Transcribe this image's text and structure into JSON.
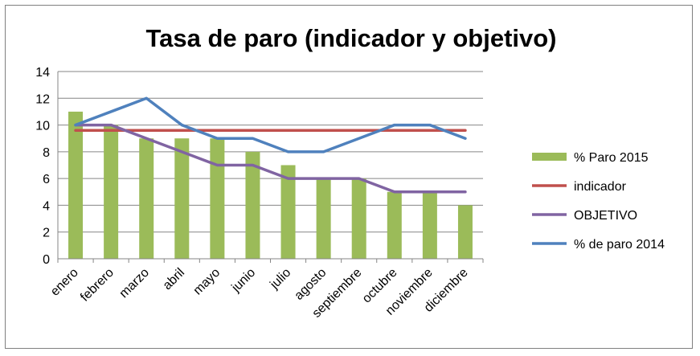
{
  "chart_data": {
    "type": "bar",
    "title": "Tasa de paro (indicador y objetivo)",
    "xlabel": "",
    "ylabel": "",
    "ylim": [
      0,
      14
    ],
    "yticks": [
      0,
      2,
      4,
      6,
      8,
      10,
      12,
      14
    ],
    "grid": true,
    "legend_position": "right",
    "categories": [
      "enero",
      "febrero",
      "marzo",
      "abril",
      "mayo",
      "junio",
      "julio",
      "agosto",
      "septiembre",
      "octubre",
      "noviembre",
      "diciembre"
    ],
    "series": [
      {
        "name": "% Paro 2015",
        "kind": "bar",
        "color": "#9bbb59",
        "values": [
          11,
          10,
          9,
          9,
          9,
          8,
          7,
          6,
          6,
          5,
          5,
          4
        ]
      },
      {
        "name": "indicador",
        "kind": "line",
        "color": "#c0504d",
        "values": [
          9.6,
          9.6,
          9.6,
          9.6,
          9.6,
          9.6,
          9.6,
          9.6,
          9.6,
          9.6,
          9.6,
          9.6
        ]
      },
      {
        "name": "OBJETIVO",
        "kind": "line",
        "color": "#8064a2",
        "values": [
          10,
          10,
          9,
          8,
          7,
          7,
          6,
          6,
          6,
          5,
          5,
          5
        ]
      },
      {
        "name": "% de paro 2014",
        "kind": "line",
        "color": "#4f81bd",
        "values": [
          10,
          11,
          12,
          10,
          9,
          9,
          8,
          8,
          9,
          10,
          10,
          9
        ]
      }
    ]
  }
}
